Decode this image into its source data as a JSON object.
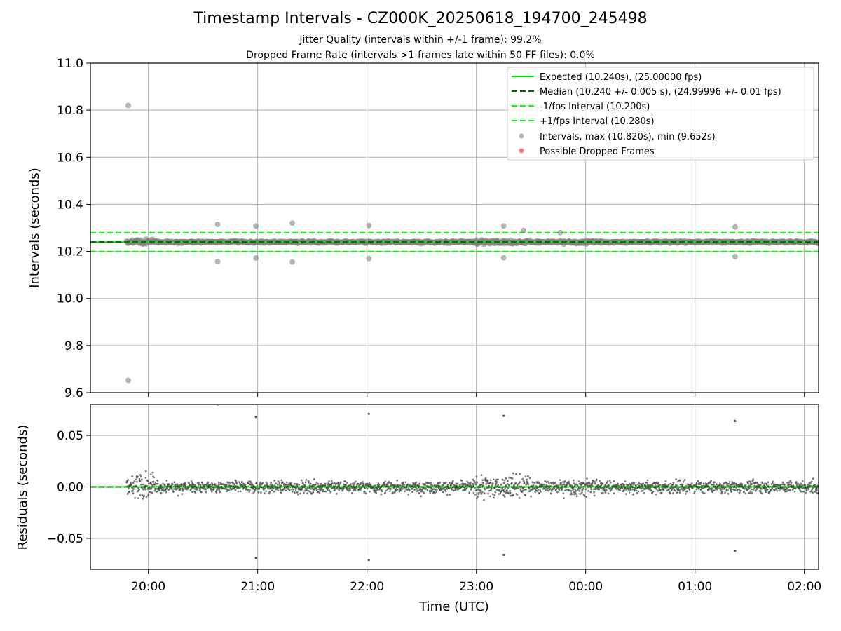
{
  "figure": {
    "title": "Timestamp Intervals - CZ000K_20250618_194700_245498",
    "subtitle_1": "Jitter Quality (intervals within +/-1 frame): 99.2%",
    "subtitle_2": "Dropped Frame Rate (intervals >1 frames late within 50 FF files): 0.0%"
  },
  "colors": {
    "expected": "#00ee00",
    "median": "#006400",
    "interval_band": "#00ff00",
    "points": "#808080",
    "dropped": "#ff4444",
    "grid": "#b0b0b0"
  },
  "chart_data": [
    {
      "type": "scatter",
      "panel": "top",
      "ylabel": "Intervals (seconds)",
      "ylim": [
        9.6,
        11.0
      ],
      "yticks": [
        "9.6",
        "9.8",
        "10.0",
        "10.2",
        "10.4",
        "10.6",
        "10.8",
        "11.0"
      ],
      "xlim_hours": [
        19.47,
        26.13
      ],
      "grid": true,
      "legend_position": "top-right",
      "reference_lines": [
        {
          "name": "Expected (10.240s), (25.00000 fps)",
          "y": 10.24,
          "style": "solid"
        },
        {
          "name": "Median (10.240 +/- 0.005 s), (24.99996 +/- 0.01 fps)",
          "y": 10.24,
          "style": "dashed"
        },
        {
          "name": "-1/fps Interval (10.200s)",
          "y": 10.2,
          "style": "dashed"
        },
        {
          "name": "+1/fps Interval (10.280s)",
          "y": 10.28,
          "style": "dashed"
        }
      ],
      "series": [
        {
          "name": "Intervals, max (10.820s), min (9.652s)",
          "marker": "circle",
          "color": "#808080"
        },
        {
          "name": "Possible Dropped Frames",
          "marker": "circle",
          "color": "#ff4444",
          "points": []
        }
      ],
      "outliers": [
        {
          "x": "19:49",
          "y": 10.82
        },
        {
          "x": "19:49",
          "y": 9.652
        },
        {
          "x": "20:38",
          "y": 10.315
        },
        {
          "x": "20:38",
          "y": 10.157
        },
        {
          "x": "20:59",
          "y": 10.308
        },
        {
          "x": "20:59",
          "y": 10.172
        },
        {
          "x": "21:19",
          "y": 10.32
        },
        {
          "x": "21:19",
          "y": 10.155
        },
        {
          "x": "22:01",
          "y": 10.31
        },
        {
          "x": "22:01",
          "y": 10.17
        },
        {
          "x": "23:15",
          "y": 10.308
        },
        {
          "x": "23:15",
          "y": 10.173
        },
        {
          "x": "23:26",
          "y": 10.289
        },
        {
          "x": "23:46",
          "y": 10.28
        },
        {
          "x": "01:22",
          "y": 10.304
        },
        {
          "x": "01:22",
          "y": 10.178
        }
      ]
    },
    {
      "type": "scatter",
      "panel": "bottom",
      "xlabel": "Time (UTC)",
      "ylabel": "Residuals (seconds)",
      "ylim": [
        -0.08,
        0.08
      ],
      "yticks": [
        "−0.05",
        "0.00",
        "0.05"
      ],
      "xticks": [
        "20:00",
        "21:00",
        "22:00",
        "23:00",
        "00:00",
        "01:00",
        "02:00"
      ],
      "grid": true,
      "outliers": [
        {
          "x": "20:38",
          "y": 0.08
        },
        {
          "x": "20:59",
          "y": 0.068
        },
        {
          "x": "20:59",
          "y": -0.069
        },
        {
          "x": "22:01",
          "y": 0.071
        },
        {
          "x": "22:01",
          "y": -0.071
        },
        {
          "x": "23:15",
          "y": 0.069
        },
        {
          "x": "23:15",
          "y": -0.066
        },
        {
          "x": "01:22",
          "y": 0.064
        },
        {
          "x": "01:22",
          "y": -0.062
        }
      ]
    }
  ]
}
